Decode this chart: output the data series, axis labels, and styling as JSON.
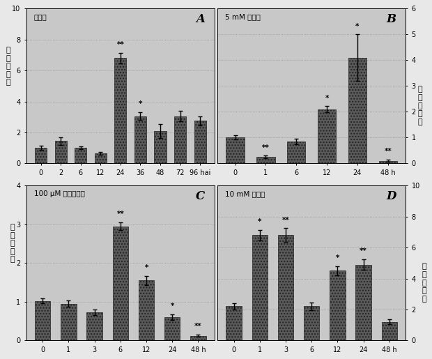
{
  "panel_A": {
    "title": "青枯菌",
    "label": "A",
    "x_labels": [
      "0",
      "2",
      "6",
      "12",
      "24",
      "36",
      "48",
      "72",
      "96 hai"
    ],
    "values": [
      1.0,
      1.45,
      1.0,
      0.65,
      6.8,
      3.05,
      2.1,
      3.05,
      2.75
    ],
    "errors": [
      0.12,
      0.25,
      0.1,
      0.08,
      0.35,
      0.25,
      0.45,
      0.35,
      0.3
    ],
    "sig": [
      "",
      "",
      "",
      "",
      "**",
      "*",
      "",
      "",
      ""
    ],
    "ylim": [
      0,
      10
    ],
    "yticks": [
      0,
      2,
      4,
      6,
      8,
      10
    ],
    "ylabel_side": "left"
  },
  "panel_B": {
    "title": "5 mM 水杨酸",
    "label": "B",
    "x_labels": [
      "0",
      "1",
      "6",
      "12",
      "24",
      "48 h"
    ],
    "values": [
      1.0,
      0.25,
      0.85,
      2.1,
      4.1,
      0.1
    ],
    "errors": [
      0.08,
      0.05,
      0.1,
      0.12,
      0.9,
      0.05
    ],
    "sig": [
      "",
      "**",
      "",
      "*",
      "*",
      "**"
    ],
    "ylim": [
      0,
      6
    ],
    "yticks": [
      0,
      1,
      2,
      3,
      4,
      5,
      6
    ],
    "ylabel_side": "right"
  },
  "panel_C": {
    "title": "100 μM 茉莉酸甲酯",
    "label": "C",
    "x_labels": [
      "0",
      "1",
      "3",
      "6",
      "12",
      "24",
      "48 h"
    ],
    "values": [
      1.02,
      0.95,
      0.72,
      2.95,
      1.55,
      0.6,
      0.12
    ],
    "errors": [
      0.06,
      0.08,
      0.07,
      0.1,
      0.12,
      0.07,
      0.03
    ],
    "sig": [
      "",
      "",
      "",
      "**",
      "*",
      "*",
      "**"
    ],
    "ylim": [
      0,
      4
    ],
    "yticks": [
      0,
      1,
      2,
      3,
      4
    ],
    "ylabel_side": "left"
  },
  "panel_D": {
    "title": "10 mM 乙烯利",
    "label": "D",
    "x_labels": [
      "0",
      "1",
      "3",
      "6",
      "12",
      "24",
      "48 h"
    ],
    "values": [
      2.2,
      6.8,
      6.8,
      2.2,
      4.5,
      4.9,
      1.2
    ],
    "errors": [
      0.2,
      0.35,
      0.45,
      0.25,
      0.3,
      0.35,
      0.15
    ],
    "sig": [
      "",
      "*",
      "**",
      "",
      "*",
      "**",
      ""
    ],
    "ylim": [
      0,
      10
    ],
    "yticks": [
      0,
      2,
      4,
      6,
      8,
      10
    ],
    "ylabel_side": "right"
  },
  "ylabel": "相对表达量",
  "bar_color": "#5a5a5a",
  "bg_color": "#c8c8c8",
  "fig_bg": "#e8e8e8"
}
